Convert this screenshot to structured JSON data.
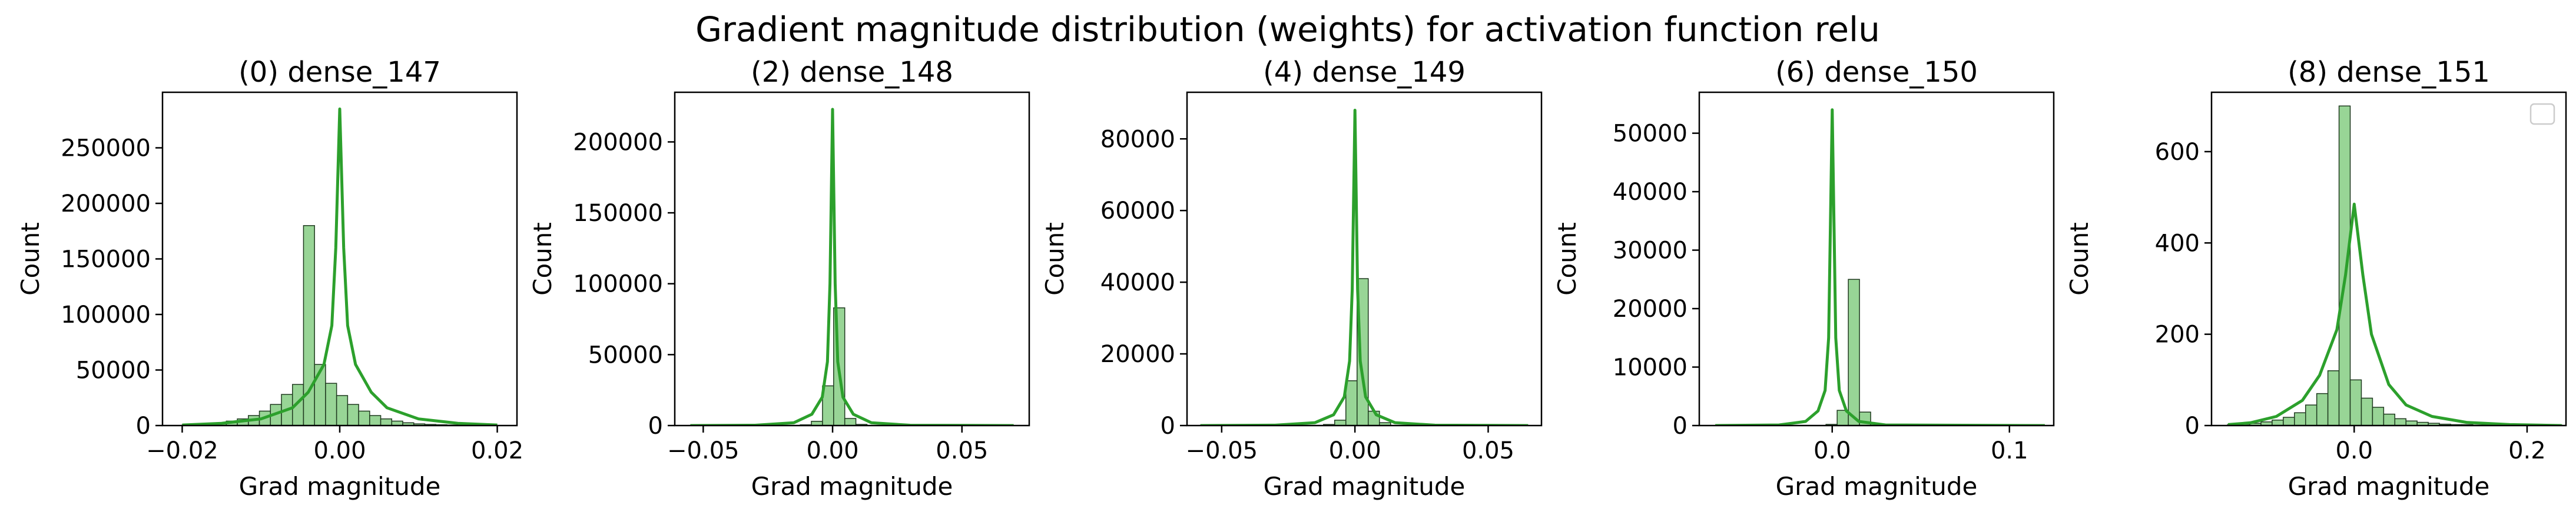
{
  "figure": {
    "title": "Gradient magnitude distribution (weights) for activation function relu"
  },
  "colors": {
    "bar_fill": "#98d596",
    "bar_edge": "#1f3a1f",
    "kde_line": "#2ca02c"
  },
  "chart_data": [
    {
      "type": "bar",
      "title": "(0) dense_147",
      "xlabel": "Grad magnitude",
      "ylabel": "Count",
      "xlim": [
        -0.0225,
        0.0225
      ],
      "ylim": [
        0,
        300000
      ],
      "xticks": [
        -0.02,
        0,
        0.02
      ],
      "xtick_labels": [
        "−0.02",
        "0.00",
        "0.02"
      ],
      "yticks": [
        0,
        50000,
        100000,
        150000,
        200000,
        250000
      ],
      "ytick_labels": [
        "0",
        "50000",
        "100000",
        "150000",
        "200000",
        "250000"
      ],
      "bins": {
        "start": -0.02,
        "width": 0.0014,
        "counts": [
          500,
          1000,
          1500,
          2500,
          4000,
          6000,
          9000,
          13000,
          19000,
          28000,
          37000,
          180000,
          55000,
          38000,
          27000,
          19000,
          13000,
          9000,
          6000,
          4000,
          2500,
          1500,
          1000,
          700,
          500,
          300,
          200,
          100,
          60
        ]
      },
      "kde": {
        "x": [
          -0.02,
          -0.015,
          -0.01,
          -0.006,
          -0.004,
          -0.002,
          -0.001,
          -0.0005,
          0,
          0.0005,
          0.001,
          0.002,
          0.004,
          0.006,
          0.01,
          0.015,
          0.02
        ],
        "y": [
          500,
          2000,
          6000,
          16000,
          30000,
          55000,
          90000,
          160000,
          285000,
          160000,
          90000,
          55000,
          30000,
          16000,
          6000,
          2000,
          500
        ]
      },
      "legend": false
    },
    {
      "type": "bar",
      "title": "(2) dense_148",
      "xlabel": "Grad magnitude",
      "ylabel": "Count",
      "xlim": [
        -0.061,
        0.076
      ],
      "ylim": [
        0,
        235000
      ],
      "xticks": [
        -0.05,
        0,
        0.05
      ],
      "xtick_labels": [
        "−0.05",
        "0.00",
        "0.05"
      ],
      "yticks": [
        0,
        50000,
        100000,
        150000,
        200000
      ],
      "ytick_labels": [
        "0",
        "50000",
        "100000",
        "150000",
        "200000"
      ],
      "bins": {
        "start": -0.0555,
        "width": 0.0043,
        "counts": [
          0,
          0,
          0,
          0,
          0,
          0,
          0,
          0,
          0,
          0,
          500,
          3000,
          28000,
          83000,
          5000,
          800,
          0,
          0,
          0,
          0,
          0,
          0,
          0,
          0,
          0,
          0,
          0,
          0,
          0,
          0
        ]
      },
      "kde": {
        "x": [
          -0.055,
          -0.03,
          -0.015,
          -0.008,
          -0.004,
          -0.002,
          -0.001,
          0,
          0.001,
          0.002,
          0.004,
          0.008,
          0.015,
          0.03,
          0.07
        ],
        "y": [
          0,
          200,
          2000,
          8000,
          20000,
          45000,
          100000,
          223000,
          100000,
          45000,
          20000,
          8000,
          2000,
          200,
          0
        ]
      },
      "legend": false
    },
    {
      "type": "bar",
      "title": "(4) dense_149",
      "xlabel": "Grad magnitude",
      "ylabel": "Count",
      "xlim": [
        -0.063,
        0.07
      ],
      "ylim": [
        0,
        93000
      ],
      "xticks": [
        -0.05,
        0,
        0.05
      ],
      "xtick_labels": [
        "−0.05",
        "0.00",
        "0.05"
      ],
      "yticks": [
        0,
        20000,
        40000,
        60000,
        80000
      ],
      "ytick_labels": [
        "0",
        "20000",
        "40000",
        "60000",
        "80000"
      ],
      "bins": {
        "start": -0.058,
        "width": 0.0042,
        "counts": [
          0,
          0,
          0,
          0,
          0,
          0,
          0,
          0,
          0,
          0,
          0,
          300,
          1500,
          12500,
          41000,
          4000,
          800,
          0,
          0,
          0,
          0,
          0,
          0,
          0,
          0,
          0,
          0,
          0,
          0,
          0,
          0
        ]
      },
      "kde": {
        "x": [
          -0.058,
          -0.03,
          -0.015,
          -0.008,
          -0.004,
          -0.002,
          -0.001,
          0,
          0.001,
          0.002,
          0.004,
          0.008,
          0.015,
          0.03,
          0.065
        ],
        "y": [
          0,
          100,
          800,
          3000,
          8000,
          18000,
          38000,
          88000,
          38000,
          18000,
          8000,
          3000,
          800,
          100,
          0
        ]
      },
      "legend": false
    },
    {
      "type": "bar",
      "title": "(6) dense_150",
      "xlabel": "Grad magnitude",
      "ylabel": "Count",
      "xlim": [
        -0.075,
        0.125
      ],
      "ylim": [
        0,
        57000
      ],
      "xticks": [
        0,
        0.1
      ],
      "xtick_labels": [
        "0.0",
        "0.1"
      ],
      "yticks": [
        0,
        10000,
        20000,
        30000,
        40000,
        50000
      ],
      "ytick_labels": [
        "0",
        "10000",
        "20000",
        "30000",
        "40000",
        "50000"
      ],
      "bins": {
        "start": -0.0665,
        "width": 0.0063,
        "counts": [
          0,
          0,
          0,
          0,
          0,
          0,
          0,
          0,
          0,
          0,
          200,
          2600,
          25000,
          2300,
          300,
          0,
          0,
          0,
          0,
          0,
          0,
          0,
          0,
          0,
          0,
          0,
          0,
          0,
          0,
          0
        ]
      },
      "kde": {
        "x": [
          -0.066,
          -0.03,
          -0.015,
          -0.008,
          -0.004,
          -0.002,
          0,
          0.002,
          0.004,
          0.008,
          0.015,
          0.03,
          0.12
        ],
        "y": [
          0,
          100,
          700,
          2500,
          6000,
          15000,
          54000,
          15000,
          6000,
          2500,
          700,
          100,
          0
        ]
      },
      "legend": false
    },
    {
      "type": "bar",
      "title": "(8) dense_151",
      "xlabel": "Grad magnitude",
      "ylabel": "Count",
      "xlim": [
        -0.165,
        0.245
      ],
      "ylim": [
        0,
        730
      ],
      "xticks": [
        0,
        0.2
      ],
      "xtick_labels": [
        "0.0",
        "0.2"
      ],
      "yticks": [
        0,
        200,
        400,
        600
      ],
      "ytick_labels": [
        "0",
        "200",
        "400",
        "600"
      ],
      "bins": {
        "start": -0.1465,
        "width": 0.0129,
        "counts": [
          2,
          3,
          5,
          8,
          12,
          18,
          28,
          45,
          70,
          120,
          700,
          100,
          60,
          40,
          25,
          15,
          10,
          7,
          5,
          3,
          2,
          2,
          1,
          1,
          1,
          1,
          1,
          1,
          1,
          1
        ]
      },
      "kde": {
        "x": [
          -0.146,
          -0.12,
          -0.09,
          -0.06,
          -0.04,
          -0.02,
          -0.01,
          0,
          0.01,
          0.02,
          0.04,
          0.06,
          0.09,
          0.13,
          0.18,
          0.24
        ],
        "y": [
          2,
          6,
          20,
          55,
          110,
          210,
          330,
          485,
          330,
          200,
          90,
          45,
          20,
          7,
          2,
          0
        ]
      },
      "legend": true
    }
  ]
}
